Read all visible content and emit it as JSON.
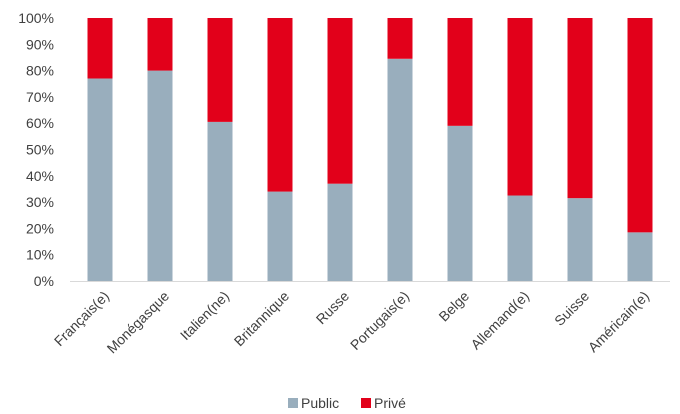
{
  "chart_data": {
    "type": "bar",
    "stacked": true,
    "percent": true,
    "categories": [
      "Français(e)",
      "Monégasque",
      "Italien(ne)",
      "Britannique",
      "Russe",
      "Portugais(e)",
      "Belge",
      "Allemand(e)",
      "Suisse",
      "Américain(e)"
    ],
    "series": [
      {
        "name": "Public",
        "color": "#99aebd",
        "values": [
          77,
          80,
          60.5,
          34,
          37,
          84.5,
          59,
          32.5,
          31.5,
          18.5
        ]
      },
      {
        "name": "Privé",
        "color": "#e2001a",
        "values": [
          23,
          20,
          39.5,
          66,
          63,
          15.5,
          41,
          67.5,
          68.5,
          81.5
        ]
      }
    ],
    "ylim": [
      0,
      100
    ],
    "yticks": [
      "0%",
      "10%",
      "20%",
      "30%",
      "40%",
      "50%",
      "60%",
      "70%",
      "80%",
      "90%",
      "100%"
    ],
    "grid": false,
    "legend_position": "bottom",
    "title": "",
    "xlabel": "",
    "ylabel": ""
  }
}
